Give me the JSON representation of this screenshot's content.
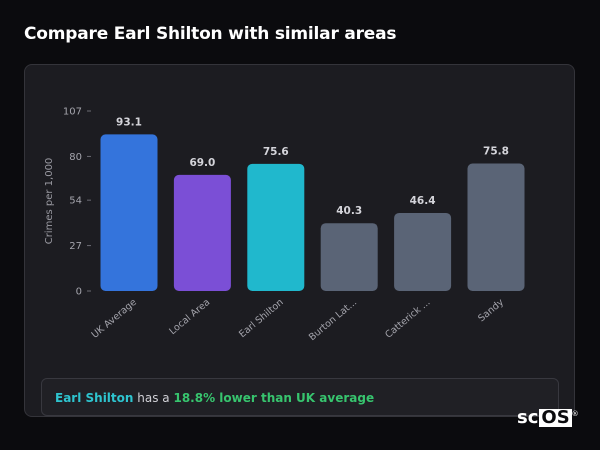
{
  "page": {
    "title": "Compare Earl Shilton with similar areas"
  },
  "summary": {
    "area": "Earl Shilton",
    "middle": " has a ",
    "difference": "18.8% lower than UK average"
  },
  "logo": {
    "text_a": "sc",
    "text_b": "OS",
    "mark": "®"
  },
  "colors": {
    "background": "#0b0b0e",
    "card": "#1c1c21",
    "uk_average": "#3474dc",
    "local_area": "#7b4fd6",
    "earl_shilton": "#20b8cd",
    "similar_area": "#5a6476",
    "highlight_text": "#2ec4cf",
    "positive_text": "#37c46e"
  },
  "chart_data": {
    "type": "bar",
    "title": "",
    "xlabel": "",
    "ylabel": "Crimes per 1,000",
    "categories": [
      "UK Average",
      "Local Area",
      "Earl Shilton",
      "Burton Lat...",
      "Catterick ...",
      "Sandy"
    ],
    "values": [
      93.1,
      69.0,
      75.6,
      40.3,
      46.4,
      75.8
    ],
    "value_labels": [
      "93.1",
      "69.0",
      "75.6",
      "40.3",
      "46.4",
      "75.8"
    ],
    "bar_colors": [
      "#3474dc",
      "#7b4fd6",
      "#20b8cd",
      "#5a6476",
      "#5a6476",
      "#5a6476"
    ],
    "yticks": [
      0,
      27,
      54,
      80,
      107
    ],
    "ylim": [
      0,
      107
    ],
    "grid": false,
    "legend": "none"
  }
}
